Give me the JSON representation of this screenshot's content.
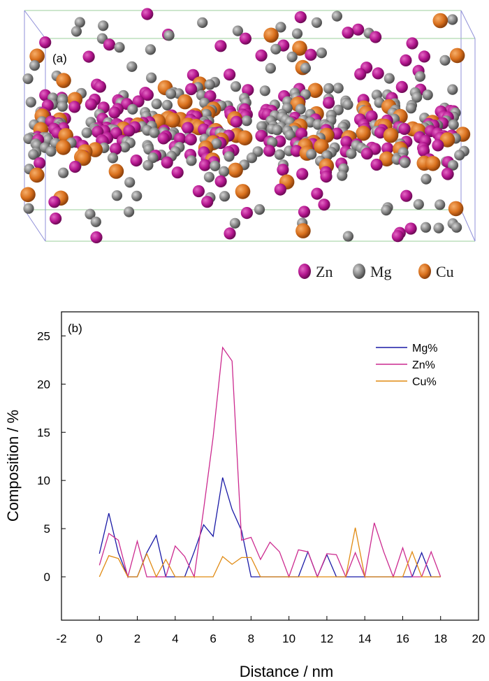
{
  "panel_a": {
    "label": "(a)",
    "legend": [
      {
        "label": "Zn",
        "color": "#b4168f"
      },
      {
        "label": "Mg",
        "color": "#858585"
      },
      {
        "label": "Cu",
        "color": "#d9701d"
      }
    ]
  },
  "chart_data": {
    "type": "line",
    "panel_label": "(b)",
    "xlabel": "Distance / nm",
    "ylabel": "Composition / %",
    "xlim": [
      -2,
      20
    ],
    "ylim": [
      -4.5,
      27.5
    ],
    "xticks": [
      -2,
      0,
      2,
      4,
      6,
      8,
      10,
      12,
      14,
      16,
      18,
      20
    ],
    "yticks": [
      0,
      5,
      10,
      15,
      20,
      25
    ],
    "legend_position": "top-right",
    "grid": false,
    "x": [
      0,
      0.5,
      1,
      1.5,
      2,
      2.5,
      3,
      3.5,
      4,
      4.5,
      5,
      5.5,
      6,
      6.5,
      7,
      7.5,
      8,
      8.5,
      9,
      9.5,
      10,
      10.5,
      11,
      11.5,
      12,
      12.5,
      13,
      13.5,
      14,
      14.5,
      15,
      15.5,
      16,
      16.5,
      17,
      17.5,
      18
    ],
    "series": [
      {
        "name": "Mg%",
        "color": "#1a1aa6",
        "values": [
          2.4,
          6.6,
          2.5,
          0,
          0,
          2.5,
          4.3,
          0,
          0,
          0,
          2.6,
          5.4,
          4.2,
          10.3,
          7.0,
          4.8,
          0,
          0,
          0,
          0,
          0,
          0,
          2.6,
          0,
          2.3,
          0,
          0,
          0,
          0,
          0,
          0,
          0,
          0,
          0,
          2.5,
          0,
          0
        ]
      },
      {
        "name": "Zn%",
        "color": "#cc2a8f",
        "values": [
          1.2,
          4.5,
          3.8,
          0,
          3.7,
          0,
          0,
          0,
          3.2,
          2.1,
          0,
          7.0,
          14.5,
          23.8,
          22.4,
          3.8,
          4.1,
          1.8,
          3.6,
          2.6,
          0,
          2.8,
          2.6,
          0,
          2.4,
          2.3,
          0,
          2.5,
          0,
          5.6,
          2.6,
          0,
          3.0,
          0,
          0,
          2.6,
          0
        ]
      },
      {
        "name": "Cu%",
        "color": "#e08a12",
        "values": [
          0,
          2.2,
          1.9,
          0,
          0,
          2.4,
          0,
          1.8,
          0,
          0,
          0,
          0,
          0,
          2.1,
          1.3,
          2.0,
          2.0,
          0,
          0,
          0,
          0,
          0,
          0,
          0,
          0,
          0,
          0,
          5.1,
          0,
          0,
          0,
          0,
          0,
          2.6,
          0,
          0,
          0
        ]
      }
    ]
  }
}
